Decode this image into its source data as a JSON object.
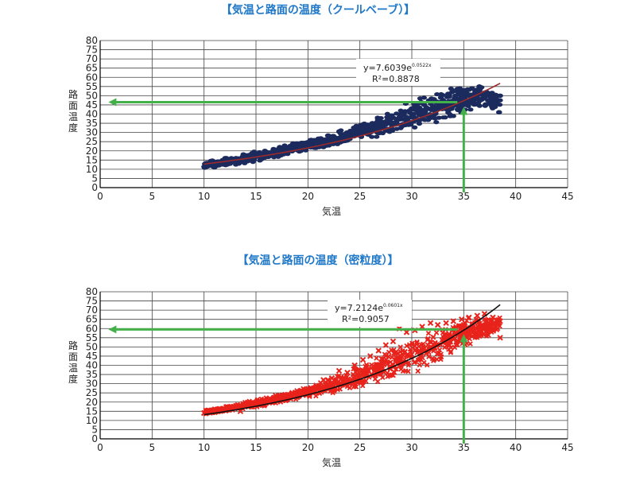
{
  "chart_data": [
    {
      "type": "scatter",
      "title": "【気温と路面の温度（クールベーブ）】",
      "xlabel": "気温",
      "ylabel": "路面温度",
      "xlim": [
        0,
        45
      ],
      "ylim": [
        0,
        80
      ],
      "xticks": [
        0,
        5,
        10,
        15,
        20,
        25,
        30,
        35,
        40,
        45
      ],
      "yticks": [
        0,
        5,
        10,
        15,
        20,
        25,
        30,
        35,
        40,
        45,
        50,
        55,
        60,
        65,
        70,
        75,
        80
      ],
      "grid": true,
      "marker": "circle",
      "point_color": "#1c2b5e",
      "trend_color": "#9a2a2a",
      "fit": {
        "a": 7.6039,
        "b": 0.0522,
        "x_range": [
          10,
          38.5
        ]
      },
      "equation_text": "y=7.6039e",
      "equation_exp": "0.0522x",
      "r2_text": "R²=0.8878",
      "band": [
        [
          10,
          10,
          14
        ],
        [
          13,
          12,
          18
        ],
        [
          16,
          15,
          21
        ],
        [
          19,
          19,
          25
        ],
        [
          22,
          22,
          29
        ],
        [
          25,
          25,
          35
        ],
        [
          28,
          29,
          42
        ],
        [
          31,
          32,
          50
        ],
        [
          34,
          38,
          55
        ],
        [
          36,
          43,
          57
        ],
        [
          38.5,
          42,
          52
        ]
      ],
      "scatter": [
        [
          10.2,
          12
        ],
        [
          10.8,
          13
        ],
        [
          11.5,
          14
        ],
        [
          12.5,
          13
        ],
        [
          13.2,
          15
        ],
        [
          14,
          16
        ],
        [
          14.8,
          15
        ],
        [
          15.5,
          18
        ],
        [
          16.2,
          17
        ],
        [
          17,
          19
        ],
        [
          17.8,
          20
        ],
        [
          18.5,
          21
        ],
        [
          19.2,
          22
        ],
        [
          20,
          23
        ],
        [
          20.8,
          24
        ],
        [
          21.5,
          25
        ],
        [
          22.3,
          27
        ],
        [
          23,
          26
        ],
        [
          23.8,
          29
        ],
        [
          24.5,
          30
        ],
        [
          25.2,
          31
        ],
        [
          26,
          33
        ],
        [
          26.8,
          34
        ],
        [
          27.5,
          36
        ],
        [
          28.2,
          38
        ],
        [
          29,
          40
        ],
        [
          29.8,
          42
        ],
        [
          30.5,
          44
        ],
        [
          31.2,
          45
        ],
        [
          32,
          48
        ],
        [
          32.8,
          49
        ],
        [
          33.5,
          51
        ],
        [
          34.2,
          50
        ],
        [
          35,
          53
        ],
        [
          35.8,
          54
        ],
        [
          36.5,
          55
        ],
        [
          37.2,
          52
        ],
        [
          38,
          48
        ],
        [
          38.5,
          50
        ],
        [
          38.4,
          41
        ]
      ],
      "guide": {
        "x": 35,
        "y": 46.5,
        "color": "#44b049"
      }
    },
    {
      "type": "scatter",
      "title": "【気温と路面の温度（密粒度）】",
      "xlabel": "気温",
      "ylabel": "路面温度",
      "xlim": [
        0,
        45
      ],
      "ylim": [
        0,
        80
      ],
      "xticks": [
        0,
        5,
        10,
        15,
        20,
        25,
        30,
        35,
        40,
        45
      ],
      "yticks": [
        0,
        5,
        10,
        15,
        20,
        25,
        30,
        35,
        40,
        45,
        50,
        55,
        60,
        65,
        70,
        75,
        80
      ],
      "grid": true,
      "marker": "x",
      "point_color": "#e8231b",
      "trend_color": "#111111",
      "fit": {
        "a": 7.2124,
        "b": 0.0601,
        "x_range": [
          10,
          38.5
        ]
      },
      "equation_text": "y=7.2124e",
      "equation_exp": "0.0601x",
      "r2_text": "R²=0.9057",
      "band": [
        [
          10,
          13,
          16
        ],
        [
          13,
          15,
          19
        ],
        [
          16,
          18,
          23
        ],
        [
          19,
          21,
          27
        ],
        [
          22,
          24,
          33
        ],
        [
          25,
          28,
          40
        ],
        [
          28,
          32,
          50
        ],
        [
          31,
          37,
          58
        ],
        [
          34,
          46,
          64
        ],
        [
          36,
          52,
          67
        ],
        [
          38.5,
          58,
          67
        ]
      ],
      "scatter": [
        [
          10,
          14
        ],
        [
          10.8,
          15
        ],
        [
          11.8,
          16
        ],
        [
          12.8,
          17
        ],
        [
          13.5,
          15
        ],
        [
          14.5,
          18
        ],
        [
          15.3,
          19
        ],
        [
          16.2,
          20
        ],
        [
          17,
          22
        ],
        [
          17.8,
          24
        ],
        [
          18.5,
          25
        ],
        [
          19.3,
          26
        ],
        [
          20,
          27
        ],
        [
          20.8,
          29
        ],
        [
          21.5,
          32
        ],
        [
          22.3,
          33
        ],
        [
          23,
          37
        ],
        [
          23.8,
          36
        ],
        [
          24.5,
          40
        ],
        [
          25.3,
          43
        ],
        [
          26,
          45
        ],
        [
          26.8,
          48
        ],
        [
          27.5,
          51
        ],
        [
          28.2,
          53
        ],
        [
          28.8,
          60
        ],
        [
          29.5,
          58
        ],
        [
          30.3,
          59
        ],
        [
          31,
          61
        ],
        [
          31.8,
          63
        ],
        [
          32.5,
          62
        ],
        [
          33.3,
          63
        ],
        [
          34,
          64
        ],
        [
          34.8,
          65
        ],
        [
          35.5,
          66
        ],
        [
          36.3,
          67
        ],
        [
          37,
          68
        ],
        [
          37.8,
          66
        ],
        [
          38.5,
          64
        ],
        [
          38.5,
          55
        ],
        [
          36.5,
          56
        ]
      ],
      "guide": {
        "x": 35,
        "y": 59.5,
        "color": "#44b049"
      }
    }
  ]
}
